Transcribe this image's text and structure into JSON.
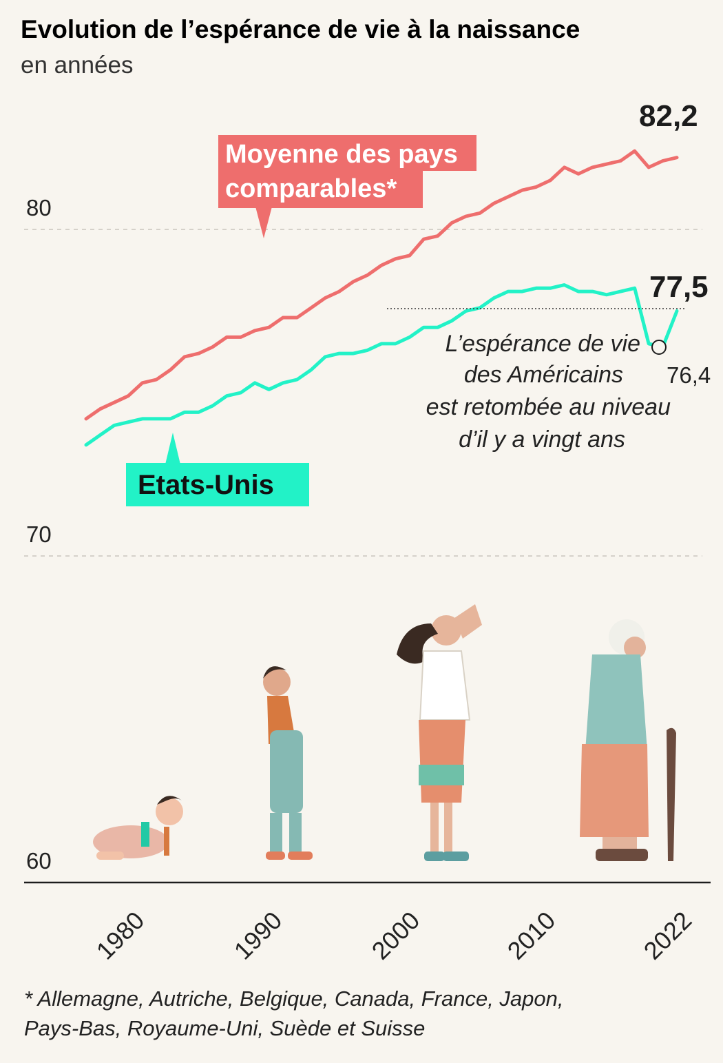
{
  "header": {
    "title": "Evolution de l’espérance de vie à la naissance",
    "subtitle": "en années"
  },
  "colors": {
    "comparable": "#ee6e6d",
    "us": "#22f2c7",
    "background": "#f8f5ef"
  },
  "chart_data": {
    "type": "line",
    "title": "Evolution de l’espérance de vie à la naissance",
    "ylabel": "en années",
    "xlabel": "",
    "ylim": [
      60,
      83
    ],
    "y_ticks": [
      "60",
      "70",
      "80"
    ],
    "x_ticks": [
      "1980",
      "1990",
      "2000",
      "2010",
      "2022"
    ],
    "x": [
      1980,
      1981,
      1982,
      1983,
      1984,
      1985,
      1986,
      1987,
      1988,
      1989,
      1990,
      1991,
      1992,
      1993,
      1994,
      1995,
      1996,
      1997,
      1998,
      1999,
      2000,
      2001,
      2002,
      2003,
      2004,
      2005,
      2006,
      2007,
      2008,
      2009,
      2010,
      2011,
      2012,
      2013,
      2014,
      2015,
      2016,
      2017,
      2018,
      2019,
      2020,
      2021,
      2022
    ],
    "series": [
      {
        "name": "Moyenne des pays comparables*",
        "values": [
          74.2,
          74.5,
          74.7,
          74.9,
          75.3,
          75.4,
          75.7,
          76.1,
          76.2,
          76.4,
          76.7,
          76.7,
          76.9,
          77.0,
          77.3,
          77.3,
          77.6,
          77.9,
          78.1,
          78.4,
          78.6,
          78.9,
          79.1,
          79.2,
          79.7,
          79.8,
          80.2,
          80.4,
          80.5,
          80.8,
          81.0,
          81.2,
          81.3,
          81.5,
          81.9,
          81.7,
          81.9,
          82.0,
          82.1,
          82.4,
          81.9,
          82.1,
          82.2
        ]
      },
      {
        "name": "Etats-Unis",
        "values": [
          73.4,
          73.7,
          74.0,
          74.1,
          74.2,
          74.2,
          74.2,
          74.4,
          74.4,
          74.6,
          74.9,
          75.0,
          75.3,
          75.1,
          75.3,
          75.4,
          75.7,
          76.1,
          76.2,
          76.2,
          76.3,
          76.5,
          76.5,
          76.7,
          77.0,
          77.0,
          77.2,
          77.5,
          77.6,
          77.9,
          78.1,
          78.1,
          78.2,
          78.2,
          78.3,
          78.1,
          78.1,
          78.0,
          78.1,
          78.2,
          76.5,
          76.4,
          77.5
        ]
      }
    ],
    "end_labels": {
      "comparable": "82,2",
      "us": "77,5"
    },
    "min_label": "76,4",
    "series_labels": {
      "comparable": [
        "Moyenne des pays",
        "comparables*"
      ],
      "us": "Etats-Unis"
    },
    "annotation": [
      "L’espérance de vie",
      "des Américains",
      "est retombée au niveau",
      "d’il y a vingt ans"
    ]
  },
  "footnote": [
    "* Allemagne, Autriche, Belgique, Canada, France, Japon,",
    "Pays-Bas, Royaume-Uni, Suède et Suisse"
  ]
}
